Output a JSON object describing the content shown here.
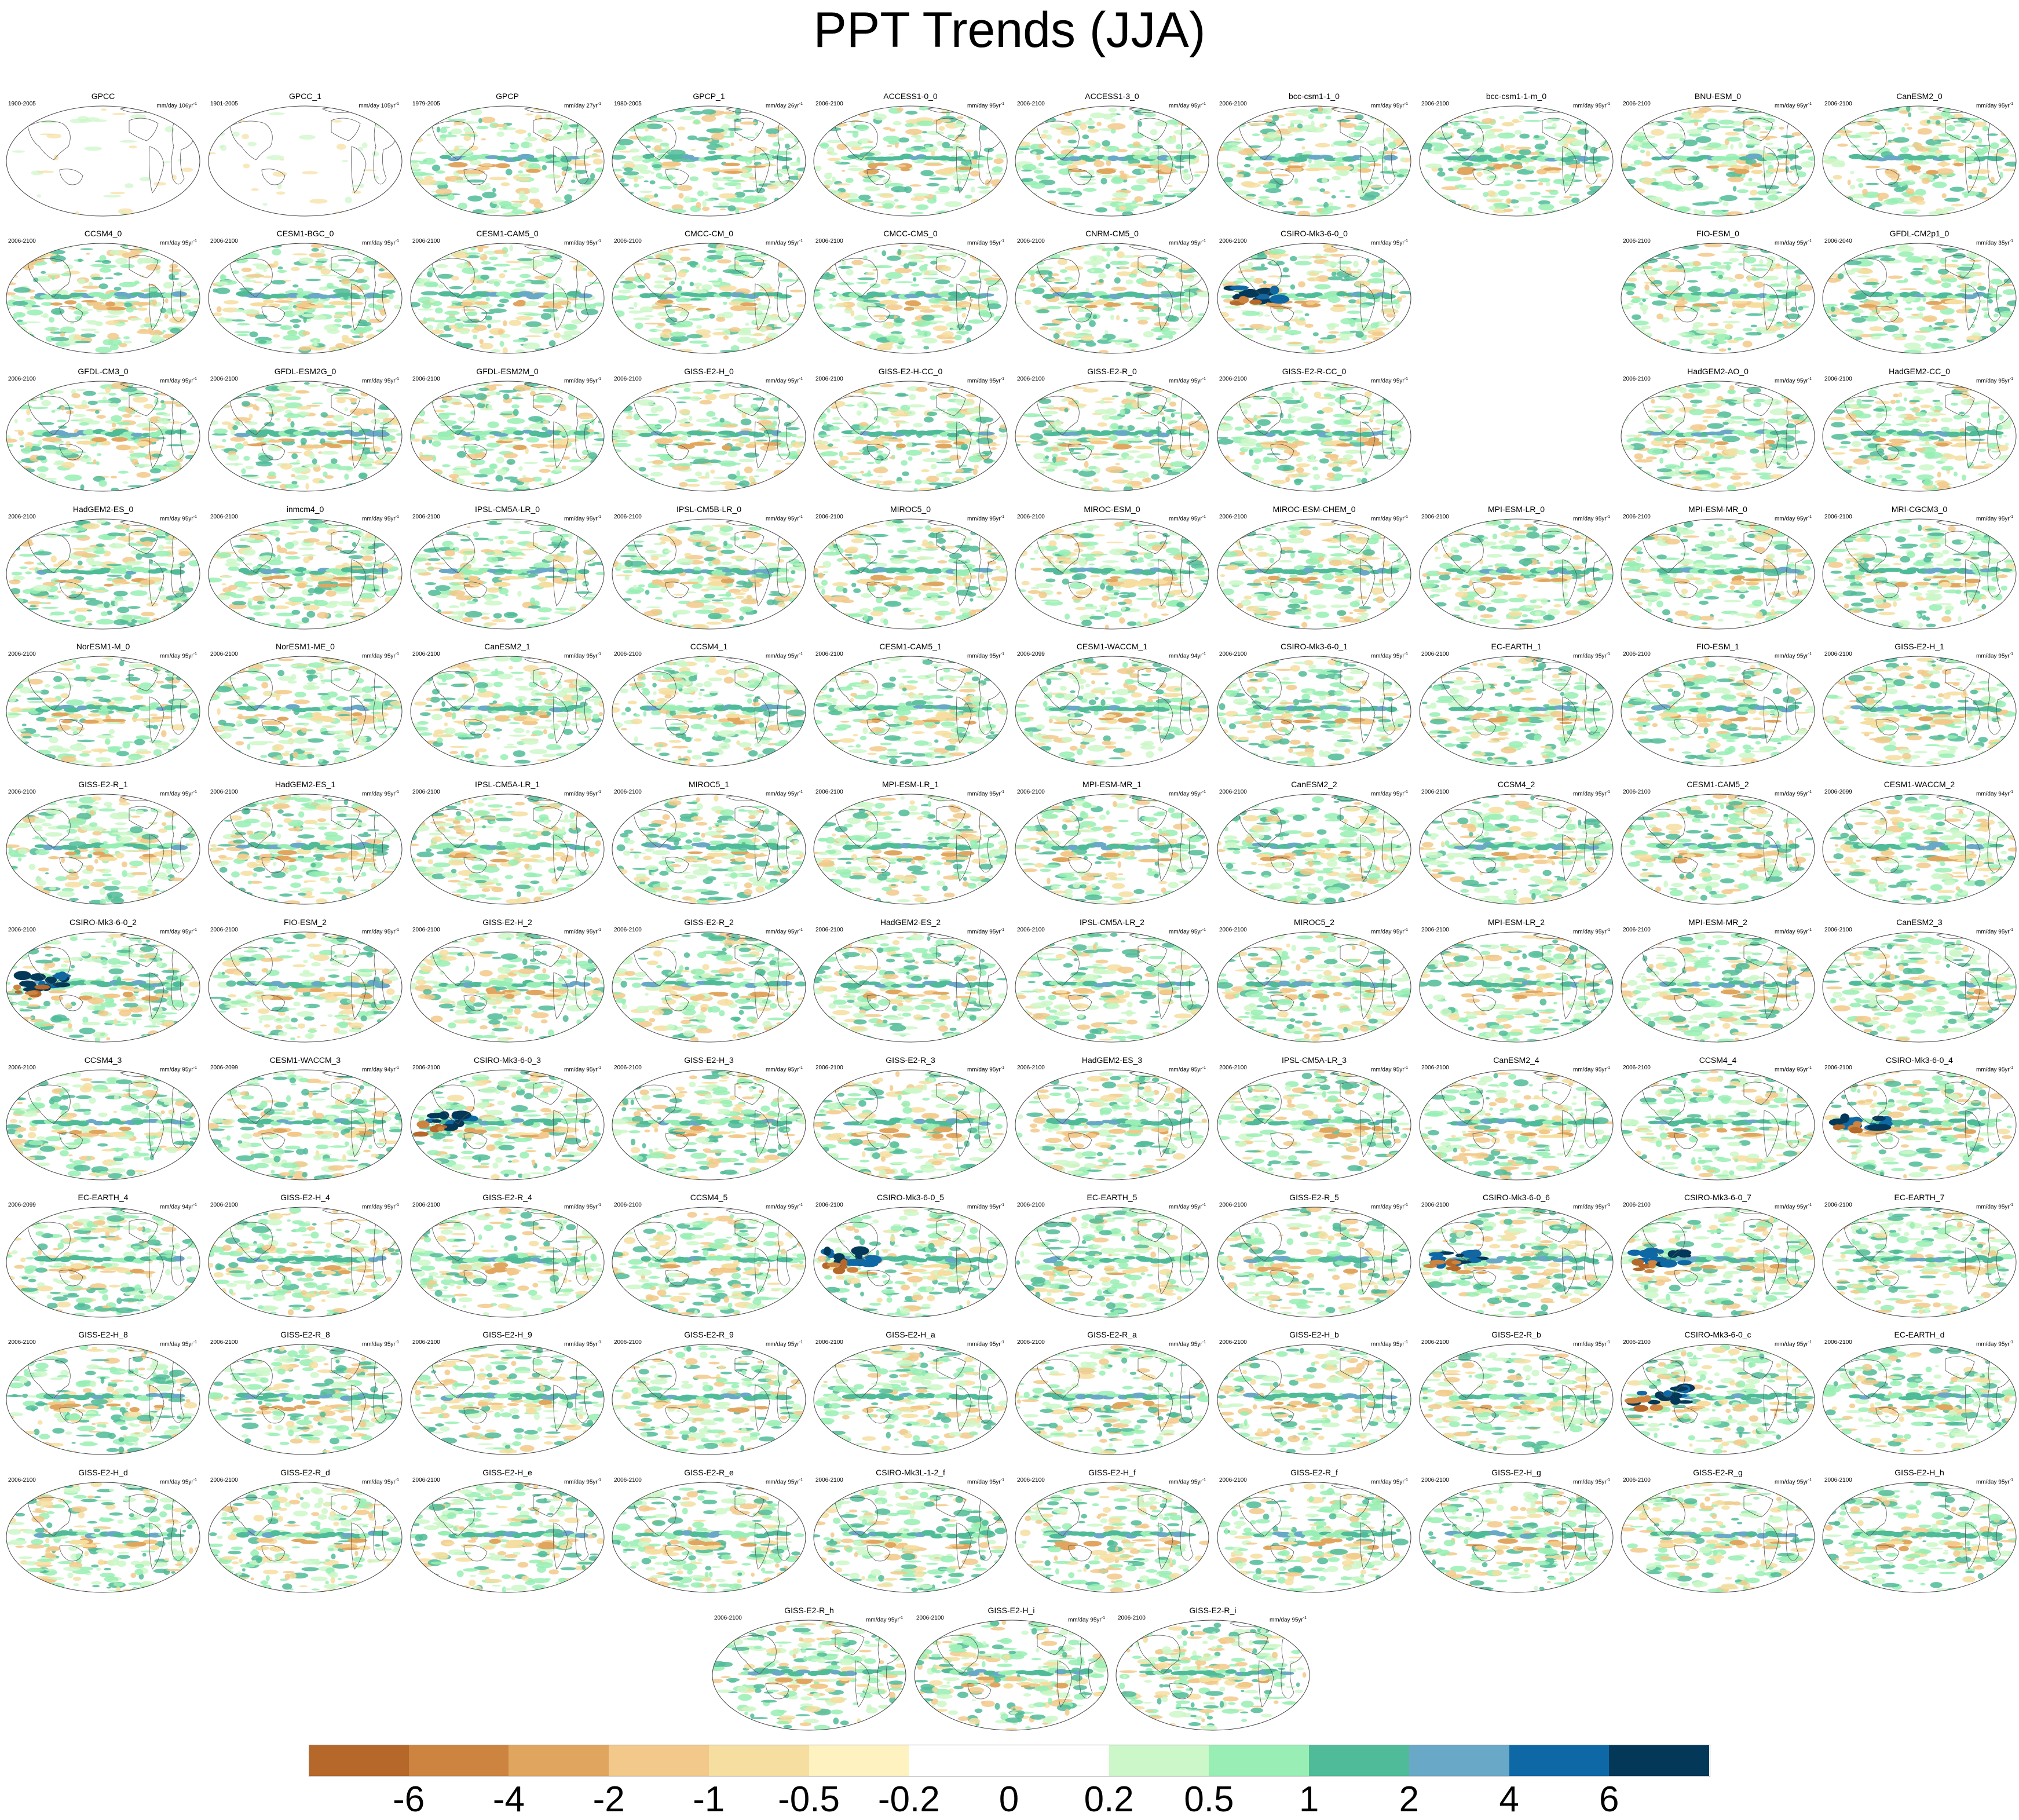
{
  "title": "PPT Trends (JJA)",
  "units_label": "mm/day",
  "panels": [
    {
      "name": "GPCC",
      "period": "1900-2005",
      "trend_years": "106yr",
      "kind": "obs-sparse"
    },
    {
      "name": "GPCC_1",
      "period": "1901-2005",
      "trend_years": "105yr",
      "kind": "obs-sparse"
    },
    {
      "name": "GPCP",
      "period": "1979-2005",
      "trend_years": "27yr",
      "kind": "obs"
    },
    {
      "name": "GPCP_1",
      "period": "1980-2005",
      "trend_years": "26yr",
      "kind": "obs"
    },
    {
      "name": "ACCESS1-0_0",
      "period": "2006-2100",
      "trend_years": "95yr",
      "kind": "model"
    },
    {
      "name": "ACCESS1-3_0",
      "period": "2006-2100",
      "trend_years": "95yr",
      "kind": "model"
    },
    {
      "name": "bcc-csm1-1_0",
      "period": "2006-2100",
      "trend_years": "95yr",
      "kind": "model"
    },
    {
      "name": "bcc-csm1-1-m_0",
      "period": "2006-2100",
      "trend_years": "95yr",
      "kind": "model"
    },
    {
      "name": "BNU-ESM_0",
      "period": "2006-2100",
      "trend_years": "95yr",
      "kind": "model"
    },
    {
      "name": "CanESM2_0",
      "period": "2006-2100",
      "trend_years": "95yr",
      "kind": "model"
    },
    {
      "name": "CCSM4_0",
      "period": "2006-2100",
      "trend_years": "95yr",
      "kind": "model"
    },
    {
      "name": "CESM1-BGC_0",
      "period": "2006-2100",
      "trend_years": "95yr",
      "kind": "model"
    },
    {
      "name": "CESM1-CAM5_0",
      "period": "2006-2100",
      "trend_years": "95yr",
      "kind": "model"
    },
    {
      "name": "CMCC-CM_0",
      "period": "2006-2100",
      "trend_years": "95yr",
      "kind": "model"
    },
    {
      "name": "CMCC-CMS_0",
      "period": "2006-2100",
      "trend_years": "95yr",
      "kind": "model"
    },
    {
      "name": "CNRM-CM5_0",
      "period": "2006-2100",
      "trend_years": "95yr",
      "kind": "model"
    },
    {
      "name": "CSIRO-Mk3-6-0_0",
      "period": "2006-2100",
      "trend_years": "95yr",
      "kind": "strong"
    },
    {
      "name": "FIO-ESM_0",
      "period": "2006-2100",
      "trend_years": "95yr",
      "kind": "model"
    },
    {
      "name": "GFDL-CM2p1_0",
      "period": "2006-2040",
      "trend_years": "35yr",
      "kind": "model"
    },
    {
      "name": "GFDL-CM3_0",
      "period": "2006-2100",
      "trend_years": "95yr",
      "kind": "model"
    },
    {
      "name": "GFDL-ESM2G_0",
      "period": "2006-2100",
      "trend_years": "95yr",
      "kind": "model"
    },
    {
      "name": "GFDL-ESM2M_0",
      "period": "2006-2100",
      "trend_years": "95yr",
      "kind": "model"
    },
    {
      "name": "GISS-E2-H_0",
      "period": "2006-2100",
      "trend_years": "95yr",
      "kind": "model"
    },
    {
      "name": "GISS-E2-H-CC_0",
      "period": "2006-2100",
      "trend_years": "95yr",
      "kind": "model"
    },
    {
      "name": "GISS-E2-R_0",
      "period": "2006-2100",
      "trend_years": "95yr",
      "kind": "model"
    },
    {
      "name": "GISS-E2-R-CC_0",
      "period": "2006-2100",
      "trend_years": "95yr",
      "kind": "model"
    },
    {
      "name": "HadGEM2-AO_0",
      "period": "2006-2100",
      "trend_years": "95yr",
      "kind": "model"
    },
    {
      "name": "HadGEM2-CC_0",
      "period": "2006-2100",
      "trend_years": "95yr",
      "kind": "model"
    },
    {
      "name": "HadGEM2-ES_0",
      "period": "2006-2100",
      "trend_years": "95yr",
      "kind": "model"
    },
    {
      "name": "inmcm4_0",
      "period": "2006-2100",
      "trend_years": "95yr",
      "kind": "model"
    },
    {
      "name": "IPSL-CM5A-LR_0",
      "period": "2006-2100",
      "trend_years": "95yr",
      "kind": "model"
    },
    {
      "name": "IPSL-CM5B-LR_0",
      "period": "2006-2100",
      "trend_years": "95yr",
      "kind": "model"
    },
    {
      "name": "MIROC5_0",
      "period": "2006-2100",
      "trend_years": "95yr",
      "kind": "model"
    },
    {
      "name": "MIROC-ESM_0",
      "period": "2006-2100",
      "trend_years": "95yr",
      "kind": "model"
    },
    {
      "name": "MIROC-ESM-CHEM_0",
      "period": "2006-2100",
      "trend_years": "95yr",
      "kind": "model"
    },
    {
      "name": "MPI-ESM-LR_0",
      "period": "2006-2100",
      "trend_years": "95yr",
      "kind": "model"
    },
    {
      "name": "MPI-ESM-MR_0",
      "period": "2006-2100",
      "trend_years": "95yr",
      "kind": "model"
    },
    {
      "name": "MRI-CGCM3_0",
      "period": "2006-2100",
      "trend_years": "95yr",
      "kind": "model"
    },
    {
      "name": "NorESM1-M_0",
      "period": "2006-2100",
      "trend_years": "95yr",
      "kind": "model"
    },
    {
      "name": "NorESM1-ME_0",
      "period": "2006-2100",
      "trend_years": "95yr",
      "kind": "model"
    },
    {
      "name": "CanESM2_1",
      "period": "2006-2100",
      "trend_years": "95yr",
      "kind": "model"
    },
    {
      "name": "CCSM4_1",
      "period": "2006-2100",
      "trend_years": "95yr",
      "kind": "model"
    },
    {
      "name": "CESM1-CAM5_1",
      "period": "2006-2100",
      "trend_years": "95yr",
      "kind": "model"
    },
    {
      "name": "CESM1-WACCM_1",
      "period": "2006-2099",
      "trend_years": "94yr",
      "kind": "model"
    },
    {
      "name": "CSIRO-Mk3-6-0_1",
      "period": "2006-2100",
      "trend_years": "95yr",
      "kind": "model"
    },
    {
      "name": "EC-EARTH_1",
      "period": "2006-2100",
      "trend_years": "95yr",
      "kind": "model"
    },
    {
      "name": "FIO-ESM_1",
      "period": "2006-2100",
      "trend_years": "95yr",
      "kind": "model"
    },
    {
      "name": "GISS-E2-H_1",
      "period": "2006-2100",
      "trend_years": "95yr",
      "kind": "model"
    },
    {
      "name": "GISS-E2-R_1",
      "period": "2006-2100",
      "trend_years": "95yr",
      "kind": "model"
    },
    {
      "name": "HadGEM2-ES_1",
      "period": "2006-2100",
      "trend_years": "95yr",
      "kind": "model"
    },
    {
      "name": "IPSL-CM5A-LR_1",
      "period": "2006-2100",
      "trend_years": "95yr",
      "kind": "model"
    },
    {
      "name": "MIROC5_1",
      "period": "2006-2100",
      "trend_years": "95yr",
      "kind": "model"
    },
    {
      "name": "MPI-ESM-LR_1",
      "period": "2006-2100",
      "trend_years": "95yr",
      "kind": "model"
    },
    {
      "name": "MPI-ESM-MR_1",
      "period": "2006-2100",
      "trend_years": "95yr",
      "kind": "model"
    },
    {
      "name": "CanESM2_2",
      "period": "2006-2100",
      "trend_years": "95yr",
      "kind": "model"
    },
    {
      "name": "CCSM4_2",
      "period": "2006-2100",
      "trend_years": "95yr",
      "kind": "model"
    },
    {
      "name": "CESM1-CAM5_2",
      "period": "2006-2100",
      "trend_years": "95yr",
      "kind": "model"
    },
    {
      "name": "CESM1-WACCM_2",
      "period": "2006-2099",
      "trend_years": "94yr",
      "kind": "model"
    },
    {
      "name": "CSIRO-Mk3-6-0_2",
      "period": "2006-2100",
      "trend_years": "95yr",
      "kind": "strong"
    },
    {
      "name": "FIO-ESM_2",
      "period": "2006-2100",
      "trend_years": "95yr",
      "kind": "model"
    },
    {
      "name": "GISS-E2-H_2",
      "period": "2006-2100",
      "trend_years": "95yr",
      "kind": "model"
    },
    {
      "name": "GISS-E2-R_2",
      "period": "2006-2100",
      "trend_years": "95yr",
      "kind": "model"
    },
    {
      "name": "HadGEM2-ES_2",
      "period": "2006-2100",
      "trend_years": "95yr",
      "kind": "model"
    },
    {
      "name": "IPSL-CM5A-LR_2",
      "period": "2006-2100",
      "trend_years": "95yr",
      "kind": "model"
    },
    {
      "name": "MIROC5_2",
      "period": "2006-2100",
      "trend_years": "95yr",
      "kind": "model"
    },
    {
      "name": "MPI-ESM-LR_2",
      "period": "2006-2100",
      "trend_years": "95yr",
      "kind": "model"
    },
    {
      "name": "MPI-ESM-MR_2",
      "period": "2006-2100",
      "trend_years": "95yr",
      "kind": "model"
    },
    {
      "name": "CanESM2_3",
      "period": "2006-2100",
      "trend_years": "95yr",
      "kind": "model"
    },
    {
      "name": "CCSM4_3",
      "period": "2006-2100",
      "trend_years": "95yr",
      "kind": "model"
    },
    {
      "name": "CESM1-WACCM_3",
      "period": "2006-2099",
      "trend_years": "94yr",
      "kind": "model"
    },
    {
      "name": "CSIRO-Mk3-6-0_3",
      "period": "2006-2100",
      "trend_years": "95yr",
      "kind": "strong"
    },
    {
      "name": "GISS-E2-H_3",
      "period": "2006-2100",
      "trend_years": "95yr",
      "kind": "model"
    },
    {
      "name": "GISS-E2-R_3",
      "period": "2006-2100",
      "trend_years": "95yr",
      "kind": "model"
    },
    {
      "name": "HadGEM2-ES_3",
      "period": "2006-2100",
      "trend_years": "95yr",
      "kind": "model"
    },
    {
      "name": "IPSL-CM5A-LR_3",
      "period": "2006-2100",
      "trend_years": "95yr",
      "kind": "model"
    },
    {
      "name": "CanESM2_4",
      "period": "2006-2100",
      "trend_years": "95yr",
      "kind": "model"
    },
    {
      "name": "CCSM4_4",
      "period": "2006-2100",
      "trend_years": "95yr",
      "kind": "model"
    },
    {
      "name": "CSIRO-Mk3-6-0_4",
      "period": "2006-2100",
      "trend_years": "95yr",
      "kind": "strong"
    },
    {
      "name": "EC-EARTH_4",
      "period": "2006-2099",
      "trend_years": "94yr",
      "kind": "model"
    },
    {
      "name": "GISS-E2-H_4",
      "period": "2006-2100",
      "trend_years": "95yr",
      "kind": "model"
    },
    {
      "name": "GISS-E2-R_4",
      "period": "2006-2100",
      "trend_years": "95yr",
      "kind": "model"
    },
    {
      "name": "CCSM4_5",
      "period": "2006-2100",
      "trend_years": "95yr",
      "kind": "model"
    },
    {
      "name": "CSIRO-Mk3-6-0_5",
      "period": "2006-2100",
      "trend_years": "95yr",
      "kind": "strong"
    },
    {
      "name": "EC-EARTH_5",
      "period": "2006-2100",
      "trend_years": "95yr",
      "kind": "model"
    },
    {
      "name": "GISS-E2-R_5",
      "period": "2006-2100",
      "trend_years": "95yr",
      "kind": "model"
    },
    {
      "name": "CSIRO-Mk3-6-0_6",
      "period": "2006-2100",
      "trend_years": "95yr",
      "kind": "strong"
    },
    {
      "name": "CSIRO-Mk3-6-0_7",
      "period": "2006-2100",
      "trend_years": "95yr",
      "kind": "strong"
    },
    {
      "name": "EC-EARTH_7",
      "period": "2006-2100",
      "trend_years": "95yr",
      "kind": "model"
    },
    {
      "name": "GISS-E2-H_8",
      "period": "2006-2100",
      "trend_years": "95yr",
      "kind": "model"
    },
    {
      "name": "GISS-E2-R_8",
      "period": "2006-2100",
      "trend_years": "95yr",
      "kind": "model"
    },
    {
      "name": "GISS-E2-H_9",
      "period": "2006-2100",
      "trend_years": "95yr",
      "kind": "model"
    },
    {
      "name": "GISS-E2-R_9",
      "period": "2006-2100",
      "trend_years": "95yr",
      "kind": "model"
    },
    {
      "name": "GISS-E2-H_a",
      "period": "2006-2100",
      "trend_years": "95yr",
      "kind": "model"
    },
    {
      "name": "GISS-E2-R_a",
      "period": "2006-2100",
      "trend_years": "95yr",
      "kind": "model"
    },
    {
      "name": "GISS-E2-H_b",
      "period": "2006-2100",
      "trend_years": "95yr",
      "kind": "model"
    },
    {
      "name": "GISS-E2-R_b",
      "period": "2006-2100",
      "trend_years": "95yr",
      "kind": "model"
    },
    {
      "name": "CSIRO-Mk3-6-0_c",
      "period": "2006-2100",
      "trend_years": "95yr",
      "kind": "strong"
    },
    {
      "name": "EC-EARTH_d",
      "period": "2006-2100",
      "trend_years": "95yr",
      "kind": "model"
    },
    {
      "name": "GISS-E2-H_d",
      "period": "2006-2100",
      "trend_years": "95yr",
      "kind": "model"
    },
    {
      "name": "GISS-E2-R_d",
      "period": "2006-2100",
      "trend_years": "95yr",
      "kind": "model"
    },
    {
      "name": "GISS-E2-H_e",
      "period": "2006-2100",
      "trend_years": "95yr",
      "kind": "model"
    },
    {
      "name": "GISS-E2-R_e",
      "period": "2006-2100",
      "trend_years": "95yr",
      "kind": "model"
    },
    {
      "name": "CSIRO-Mk3L-1-2_f",
      "period": "2006-2100",
      "trend_years": "95yr",
      "kind": "model"
    },
    {
      "name": "GISS-E2-H_f",
      "period": "2006-2100",
      "trend_years": "95yr",
      "kind": "model"
    },
    {
      "name": "GISS-E2-R_f",
      "period": "2006-2100",
      "trend_years": "95yr",
      "kind": "model"
    },
    {
      "name": "GISS-E2-H_g",
      "period": "2006-2100",
      "trend_years": "95yr",
      "kind": "model"
    },
    {
      "name": "GISS-E2-R_g",
      "period": "2006-2100",
      "trend_years": "95yr",
      "kind": "model"
    },
    {
      "name": "GISS-E2-H_h",
      "period": "2006-2100",
      "trend_years": "95yr",
      "kind": "model"
    },
    {
      "name": "GISS-E2-R_h",
      "period": "2006-2100",
      "trend_years": "95yr",
      "kind": "model"
    },
    {
      "name": "GISS-E2-H_i",
      "period": "2006-2100",
      "trend_years": "95yr",
      "kind": "model"
    },
    {
      "name": "GISS-E2-R_i",
      "period": "2006-2100",
      "trend_years": "95yr",
      "kind": "model"
    }
  ],
  "colorbar": {
    "labels": [
      "-6",
      "-4",
      "-2",
      "-1",
      "-0.5",
      "-0.2",
      "0",
      "0.2",
      "0.5",
      "1",
      "2",
      "4",
      "6"
    ],
    "colors": [
      "#b5682a",
      "#cc8440",
      "#e0a660",
      "#f2c98a",
      "#f5dea0",
      "#fdf2c0",
      "#ffffff",
      "#ffffff",
      "#ccf7c8",
      "#98eeb4",
      "#50bb98",
      "#6aa8c8",
      "#0f68a6",
      "#033858"
    ]
  }
}
